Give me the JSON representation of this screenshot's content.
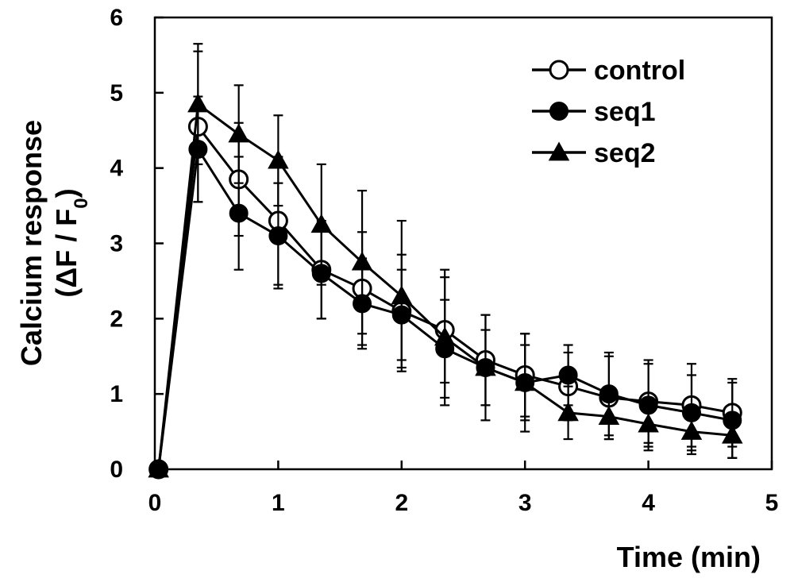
{
  "chart_data": {
    "type": "line",
    "xlabel": "Time (min)",
    "ylabel_line1": "Calcium response",
    "ylabel_line2_prefix": "(ΔF / F",
    "ylabel_line2_sub": "0",
    "ylabel_line2_suffix": ")",
    "xlim": [
      0,
      5
    ],
    "ylim": [
      0,
      6
    ],
    "xticks": [
      0,
      1,
      2,
      3,
      4,
      5
    ],
    "yticks": [
      0,
      1,
      2,
      3,
      4,
      5,
      6
    ],
    "xtick_labels": [
      "0",
      "1",
      "2",
      "3",
      "4",
      "5"
    ],
    "ytick_labels": [
      "0",
      "1",
      "2",
      "3",
      "4",
      "5",
      "6"
    ],
    "legend_position": "top-right",
    "x": [
      0.03,
      0.35,
      0.68,
      1.0,
      1.35,
      1.68,
      2.0,
      2.35,
      2.68,
      3.0,
      3.35,
      3.68,
      4.0,
      4.35,
      4.68
    ],
    "series": [
      {
        "name": "control",
        "marker": "open-circle",
        "values": [
          0.0,
          4.55,
          3.85,
          3.3,
          2.65,
          2.4,
          2.1,
          1.85,
          1.45,
          1.25,
          1.1,
          0.95,
          0.9,
          0.85,
          0.75
        ],
        "errors": [
          0.0,
          1.0,
          0.75,
          0.85,
          0.65,
          0.75,
          0.75,
          0.7,
          0.6,
          0.55,
          0.45,
          0.55,
          0.55,
          0.55,
          0.45
        ]
      },
      {
        "name": "seq1",
        "marker": "filled-circle",
        "values": [
          0.0,
          4.25,
          3.4,
          3.1,
          2.6,
          2.2,
          2.05,
          1.6,
          1.35,
          1.15,
          1.25,
          1.0,
          0.85,
          0.75,
          0.65
        ],
        "errors": [
          0.0,
          0.7,
          0.75,
          0.7,
          0.6,
          0.6,
          0.6,
          0.65,
          0.5,
          0.5,
          0.4,
          0.55,
          0.55,
          0.5,
          0.5
        ]
      },
      {
        "name": "seq2",
        "marker": "filled-triangle",
        "values": [
          0.0,
          4.85,
          4.45,
          4.1,
          3.25,
          2.75,
          2.3,
          1.75,
          1.35,
          1.15,
          0.75,
          0.7,
          0.6,
          0.5,
          0.45
        ],
        "errors": [
          0.0,
          0.8,
          0.65,
          0.6,
          0.8,
          0.95,
          1.0,
          0.9,
          0.7,
          0.65,
          0.35,
          0.3,
          0.35,
          0.3,
          0.3
        ]
      }
    ]
  },
  "colors": {
    "ink": "#000000",
    "background": "#ffffff"
  }
}
